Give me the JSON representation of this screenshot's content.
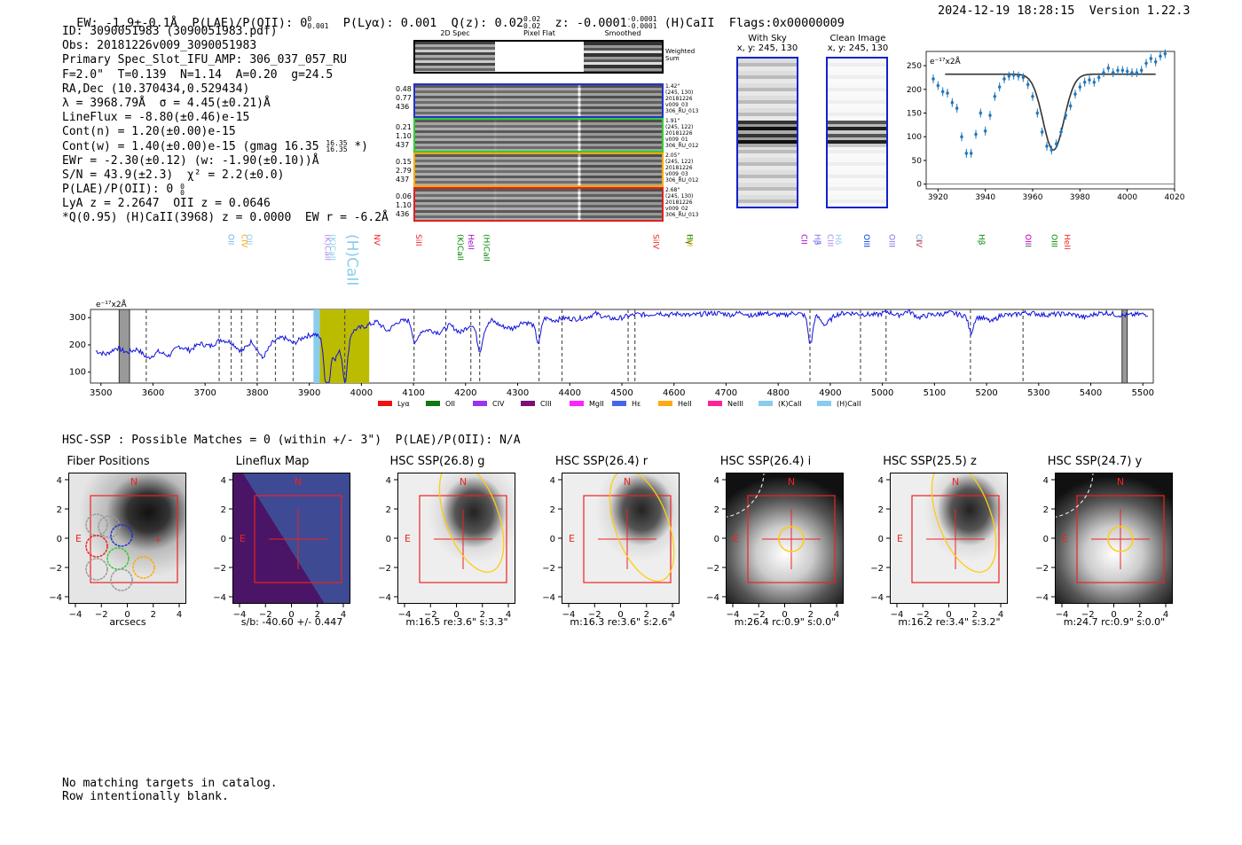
{
  "header": {
    "ew": "EW: -1.9±-0.1Å",
    "plae_label": "P(LAE)/P(OII): 0",
    "plae_sup": "0",
    "plae_sub": "0.001",
    "plya": "P(Lyα): 0.001",
    "qz": "Q(z): 0.02",
    "qz_sup": "0.02",
    "qz_sub": "0.02",
    "z": "z: -0.0001",
    "z_sup": "-0.0001",
    "z_sub": "-0.0001",
    "z_line": "(H)CaII",
    "flags": "Flags:0x00000009",
    "datetime": "2024-12-19 18:28:15",
    "version": "Version 1.22.3"
  },
  "info": {
    "id": "ID: 3090051983 (3090051983.pdf)",
    "obs": "Obs: 20181226v009_3090051983",
    "primary": "Primary Spec_Slot_IFU_AMP: 306_037_057_RU",
    "fibers": "F=2.0\"  T=0.139  N=1.14  A=0.20  g=24.5",
    "radec": "RA,Dec (10.370434,0.529434)",
    "lambda": "λ = 3968.79Å  σ = 4.45(±0.21)Å",
    "lineflux": "LineFlux = -8.80(±0.46)e-15",
    "contn": "Cont(n) = 1.20(±0.00)e-15",
    "contw": "Cont(w) = 1.40(±0.00)e-15 (gmag 16.35",
    "contw_sup": "16.35",
    "contw_sub": "16.35",
    "contw_end": "*)",
    "ewr": "EWr = -2.30(±0.12) (w: -1.90(±0.10))Å",
    "sn": "S/N = 43.9(±2.3)  χ² = 2.2(±0.0)",
    "plae": "P(LAE)/P(OII): 0",
    "plae_sup": "0",
    "plae_sub": "0",
    "lya": "LyA z = 2.2647  OII z = 0.0646",
    "q": "*Q(0.95) (H)CaII(3968) z = 0.0000  EW r = -6.2Å"
  },
  "cutouts": {
    "col_titles": [
      "2D Spec",
      "Pixel Flat",
      "Smoothed"
    ],
    "weighted_label": "Weighted\nSum",
    "rows": [
      {
        "left": "0.48\n0.77\n436",
        "right": "1.42\"\n(245, 130)\n20181226\nv009_03\n306_RU_013",
        "color": "#2233cc"
      },
      {
        "left": "0.21\n1.10\n437",
        "right": "1.91\"\n(245, 122)\n20181226\nv009_01\n306_RU_012",
        "color": "#33cc33"
      },
      {
        "left": "0.15\n2.79\n437",
        "right": "2.05\"\n(245, 122)\n20181226\nv009_03\n306_RU_012",
        "color": "#ffaa00"
      },
      {
        "left": "0.06\n1.10\n436",
        "right": "2.68\"\n(245, 130)\n20181226\nv009_02\n306_RU_013",
        "color": "#dd2222"
      }
    ]
  },
  "sky": {
    "with_sky": "With Sky\nx, y: 245, 130",
    "clean": "Clean Image\nx, y: 245, 130"
  },
  "zoom_plot": {
    "unit": "e⁻¹⁷x2Å",
    "x_ticks": [
      "3920",
      "3940",
      "3960",
      "3980",
      "4000",
      "4020"
    ],
    "y_ticks": [
      "0",
      "50",
      "100",
      "150",
      "200",
      "250"
    ]
  },
  "spectrum": {
    "unit": "e⁻¹⁷x2Å",
    "x_ticks": [
      "3500",
      "3600",
      "3700",
      "3800",
      "3900",
      "4000",
      "4100",
      "4200",
      "4300",
      "4400",
      "4500",
      "4600",
      "4700",
      "4800",
      "4900",
      "5000",
      "5100",
      "5200",
      "5300",
      "5400",
      "5500"
    ],
    "y_ticks": [
      "100",
      "200",
      "300"
    ],
    "line_labels": [
      {
        "text": "OII",
        "color": "#2255ee",
        "x": 3740,
        "row": 2
      },
      {
        "text": "OII",
        "color": "#88ccee",
        "x": 3740,
        "row": 0
      },
      {
        "text": "CIV",
        "color": "#ffaa00",
        "x": 3765,
        "row": 2
      },
      {
        "text": "OII",
        "color": "#88ccee",
        "x": 3775,
        "row": 2
      },
      {
        "text": "(K)CaII",
        "color": "#aa88ee",
        "x": 3925,
        "row": 1
      },
      {
        "text": "(K)CaII",
        "color": "#88ccee",
        "x": 3935,
        "row": 2
      },
      {
        "text": "(H)CaII",
        "color": "#88ccee",
        "x": 3968,
        "row": 3
      },
      {
        "text": "NV",
        "color": "#ee2222",
        "x": 4020,
        "row": 2
      },
      {
        "text": "SiII",
        "color": "#ee2222",
        "x": 4100,
        "row": 2
      },
      {
        "text": "(K)CaII",
        "color": "#008800",
        "x": 4180,
        "row": 2
      },
      {
        "text": "HeII",
        "color": "#aa00cc",
        "x": 4200,
        "row": 2
      },
      {
        "text": "(H)CaII",
        "color": "#008800",
        "x": 4230,
        "row": 2
      },
      {
        "text": "SiIV",
        "color": "#ee2222",
        "x": 4555,
        "row": 2
      },
      {
        "text": "CIII",
        "color": "#ffaa00",
        "x": 4620,
        "row": 0
      },
      {
        "text": "Hγ",
        "color": "#008800",
        "x": 4620,
        "row": 2
      },
      {
        "text": "CII",
        "color": "#aa00cc",
        "x": 4840,
        "row": 2
      },
      {
        "text": "Hβ",
        "color": "#2255ee",
        "x": 4865,
        "row": 2
      },
      {
        "text": "Hδ",
        "color": "#aa88ee",
        "x": 4865,
        "row": 0
      },
      {
        "text": "CIII",
        "color": "#aa88ee",
        "x": 4890,
        "row": 2
      },
      {
        "text": "Hδ",
        "color": "#88ccee",
        "x": 4905,
        "row": 2
      },
      {
        "text": "OIII",
        "color": "#2255ee",
        "x": 4960,
        "row": 2
      },
      {
        "text": "OIII",
        "color": "#2255ee",
        "x": 4960,
        "row": 0
      },
      {
        "text": "OIII",
        "color": "#2255ee",
        "x": 5008,
        "row": 2
      },
      {
        "text": "OIII",
        "color": "#aa88ee",
        "x": 5008,
        "row": 0
      },
      {
        "text": "CIV",
        "color": "#ee2222",
        "x": 5060,
        "row": 2
      },
      {
        "text": "OII",
        "color": "#88ccee",
        "x": 5060,
        "row": 0
      },
      {
        "text": "Hβ",
        "color": "#008800",
        "x": 5180,
        "row": 2
      },
      {
        "text": "OIII",
        "color": "#008800",
        "x": 5270,
        "row": 2
      },
      {
        "text": "OII",
        "color": "#ee00ee",
        "x": 5270,
        "row": 0
      },
      {
        "text": "OIII",
        "color": "#008800",
        "x": 5320,
        "row": 2
      },
      {
        "text": "HeII",
        "color": "#ee2222",
        "x": 5345,
        "row": 2
      }
    ],
    "legend": [
      {
        "label": "Lyα",
        "color": "#ee1111"
      },
      {
        "label": "OII",
        "color": "#117711"
      },
      {
        "label": "CIV",
        "color": "#9933ee"
      },
      {
        "label": "CIII",
        "color": "#771177"
      },
      {
        "label": "MgII",
        "color": "#ff22ff"
      },
      {
        "label": "Hε",
        "color": "#4466ee"
      },
      {
        "label": "HeII",
        "color": "#ffaa11"
      },
      {
        "label": "NeIII",
        "color": "#ff2299"
      },
      {
        "label": "(K)CaII",
        "color": "#88ccee"
      },
      {
        "label": "(H)CaII",
        "color": "#88ccee"
      }
    ]
  },
  "hsc": {
    "summary": "HSC-SSP : Possible Matches = 0 (within +/- 3\")  P(LAE)/P(OII): N/A",
    "panels": [
      {
        "title": "Fiber Positions",
        "caption": "arcsecs"
      },
      {
        "title": "Lineflux Map",
        "caption": "s/b: -40.60 +/- 0.447"
      },
      {
        "title": "HSC SSP(26.8) g",
        "caption": "m:16.5  re:3.6\"  s:3.3\""
      },
      {
        "title": "HSC SSP(26.4) r",
        "caption": "m:16.3  re:3.6\"  s:2.6\""
      },
      {
        "title": "HSC SSP(26.4) i",
        "caption": "m:26.4 rc:0.9\"  s:0.0\""
      },
      {
        "title": "HSC SSP(25.5) z",
        "caption": "m:16.2  re:3.4\"  s:3.2\""
      },
      {
        "title": "HSC SSP(24.7) y",
        "caption": "m:24.7 rc:0.9\"  s:0.0\""
      }
    ],
    "axis_ticks": [
      "−4",
      "−2",
      "0",
      "2",
      "4"
    ],
    "north": "N",
    "east": "E"
  },
  "footer": {
    "line1": "No matching targets in catalog.",
    "line2": "Row intentionally blank."
  },
  "chart_data": [
    {
      "type": "scatter",
      "title": "",
      "xlabel": "",
      "ylabel": "e⁻¹⁷x2Å",
      "xlim": [
        3915,
        4020
      ],
      "ylim": [
        -10,
        280
      ],
      "x": [
        3918,
        3920,
        3922,
        3924,
        3926,
        3928,
        3930,
        3932,
        3934,
        3936,
        3938,
        3940,
        3942,
        3944,
        3946,
        3948,
        3950,
        3952,
        3954,
        3956,
        3958,
        3960,
        3962,
        3964,
        3966,
        3968,
        3970,
        3972,
        3974,
        3976,
        3978,
        3980,
        3982,
        3984,
        3986,
        3988,
        3990,
        3992,
        3994,
        3996,
        3998,
        4000,
        4002,
        4004,
        4006,
        4008,
        4010,
        4012,
        4014,
        4016
      ],
      "values": [
        222,
        208,
        195,
        192,
        172,
        160,
        100,
        65,
        65,
        105,
        150,
        112,
        145,
        185,
        205,
        222,
        228,
        230,
        228,
        225,
        210,
        185,
        150,
        110,
        80,
        72,
        85,
        110,
        145,
        165,
        190,
        205,
        215,
        220,
        215,
        225,
        235,
        245,
        235,
        240,
        240,
        238,
        235,
        235,
        240,
        255,
        265,
        258,
        270,
        275
      ],
      "model": {
        "continuum": 232,
        "center": 3968.79,
        "sigma": 4.45,
        "depth": 160
      }
    },
    {
      "type": "line",
      "title": "",
      "xlabel": "",
      "ylabel": "e⁻¹⁷x2Å",
      "xlim": [
        3480,
        5520
      ],
      "ylim": [
        60,
        330
      ],
      "x_start": 3490,
      "x_step": 20,
      "values": [
        178,
        165,
        190,
        172,
        185,
        150,
        175,
        160,
        195,
        180,
        205,
        195,
        220,
        210,
        175,
        215,
        150,
        210,
        228,
        205,
        230,
        240,
        215,
        150,
        230,
        258,
        270,
        285,
        250,
        285,
        290,
        250,
        255,
        245,
        272,
        245,
        275,
        245,
        290,
        268,
        260,
        285,
        275,
        300,
        290,
        298,
        295,
        300,
        315,
        300,
        295,
        305,
        312,
        310,
        318,
        310,
        315,
        308,
        312,
        316,
        316,
        310,
        320,
        305,
        318,
        312,
        308,
        318,
        310,
        315,
        272,
        310,
        318,
        315,
        312,
        310,
        322,
        308,
        325,
        300,
        310,
        312,
        318,
        310,
        305,
        300,
        285,
        312,
        308,
        318,
        316,
        310,
        312,
        314,
        310,
        300,
        315,
        318,
        310,
        308,
        312
      ],
      "dips": [
        {
          "x": 3934,
          "depth": 225
        },
        {
          "x": 3969,
          "depth": 160
        },
        {
          "x": 4103,
          "depth": 60
        },
        {
          "x": 4227,
          "depth": 70
        },
        {
          "x": 4340,
          "depth": 80
        },
        {
          "x": 4862,
          "depth": 110
        },
        {
          "x": 5170,
          "depth": 60
        }
      ],
      "dashed_lines": [
        3587,
        3727,
        3750,
        3770,
        3800,
        3835,
        3869,
        3968,
        4101,
        4162,
        4210,
        4227,
        4341,
        4385,
        4512,
        4525,
        4861,
        4958,
        5007,
        5169,
        5270
      ],
      "shaded_band": [
        3920,
        4015
      ]
    }
  ]
}
